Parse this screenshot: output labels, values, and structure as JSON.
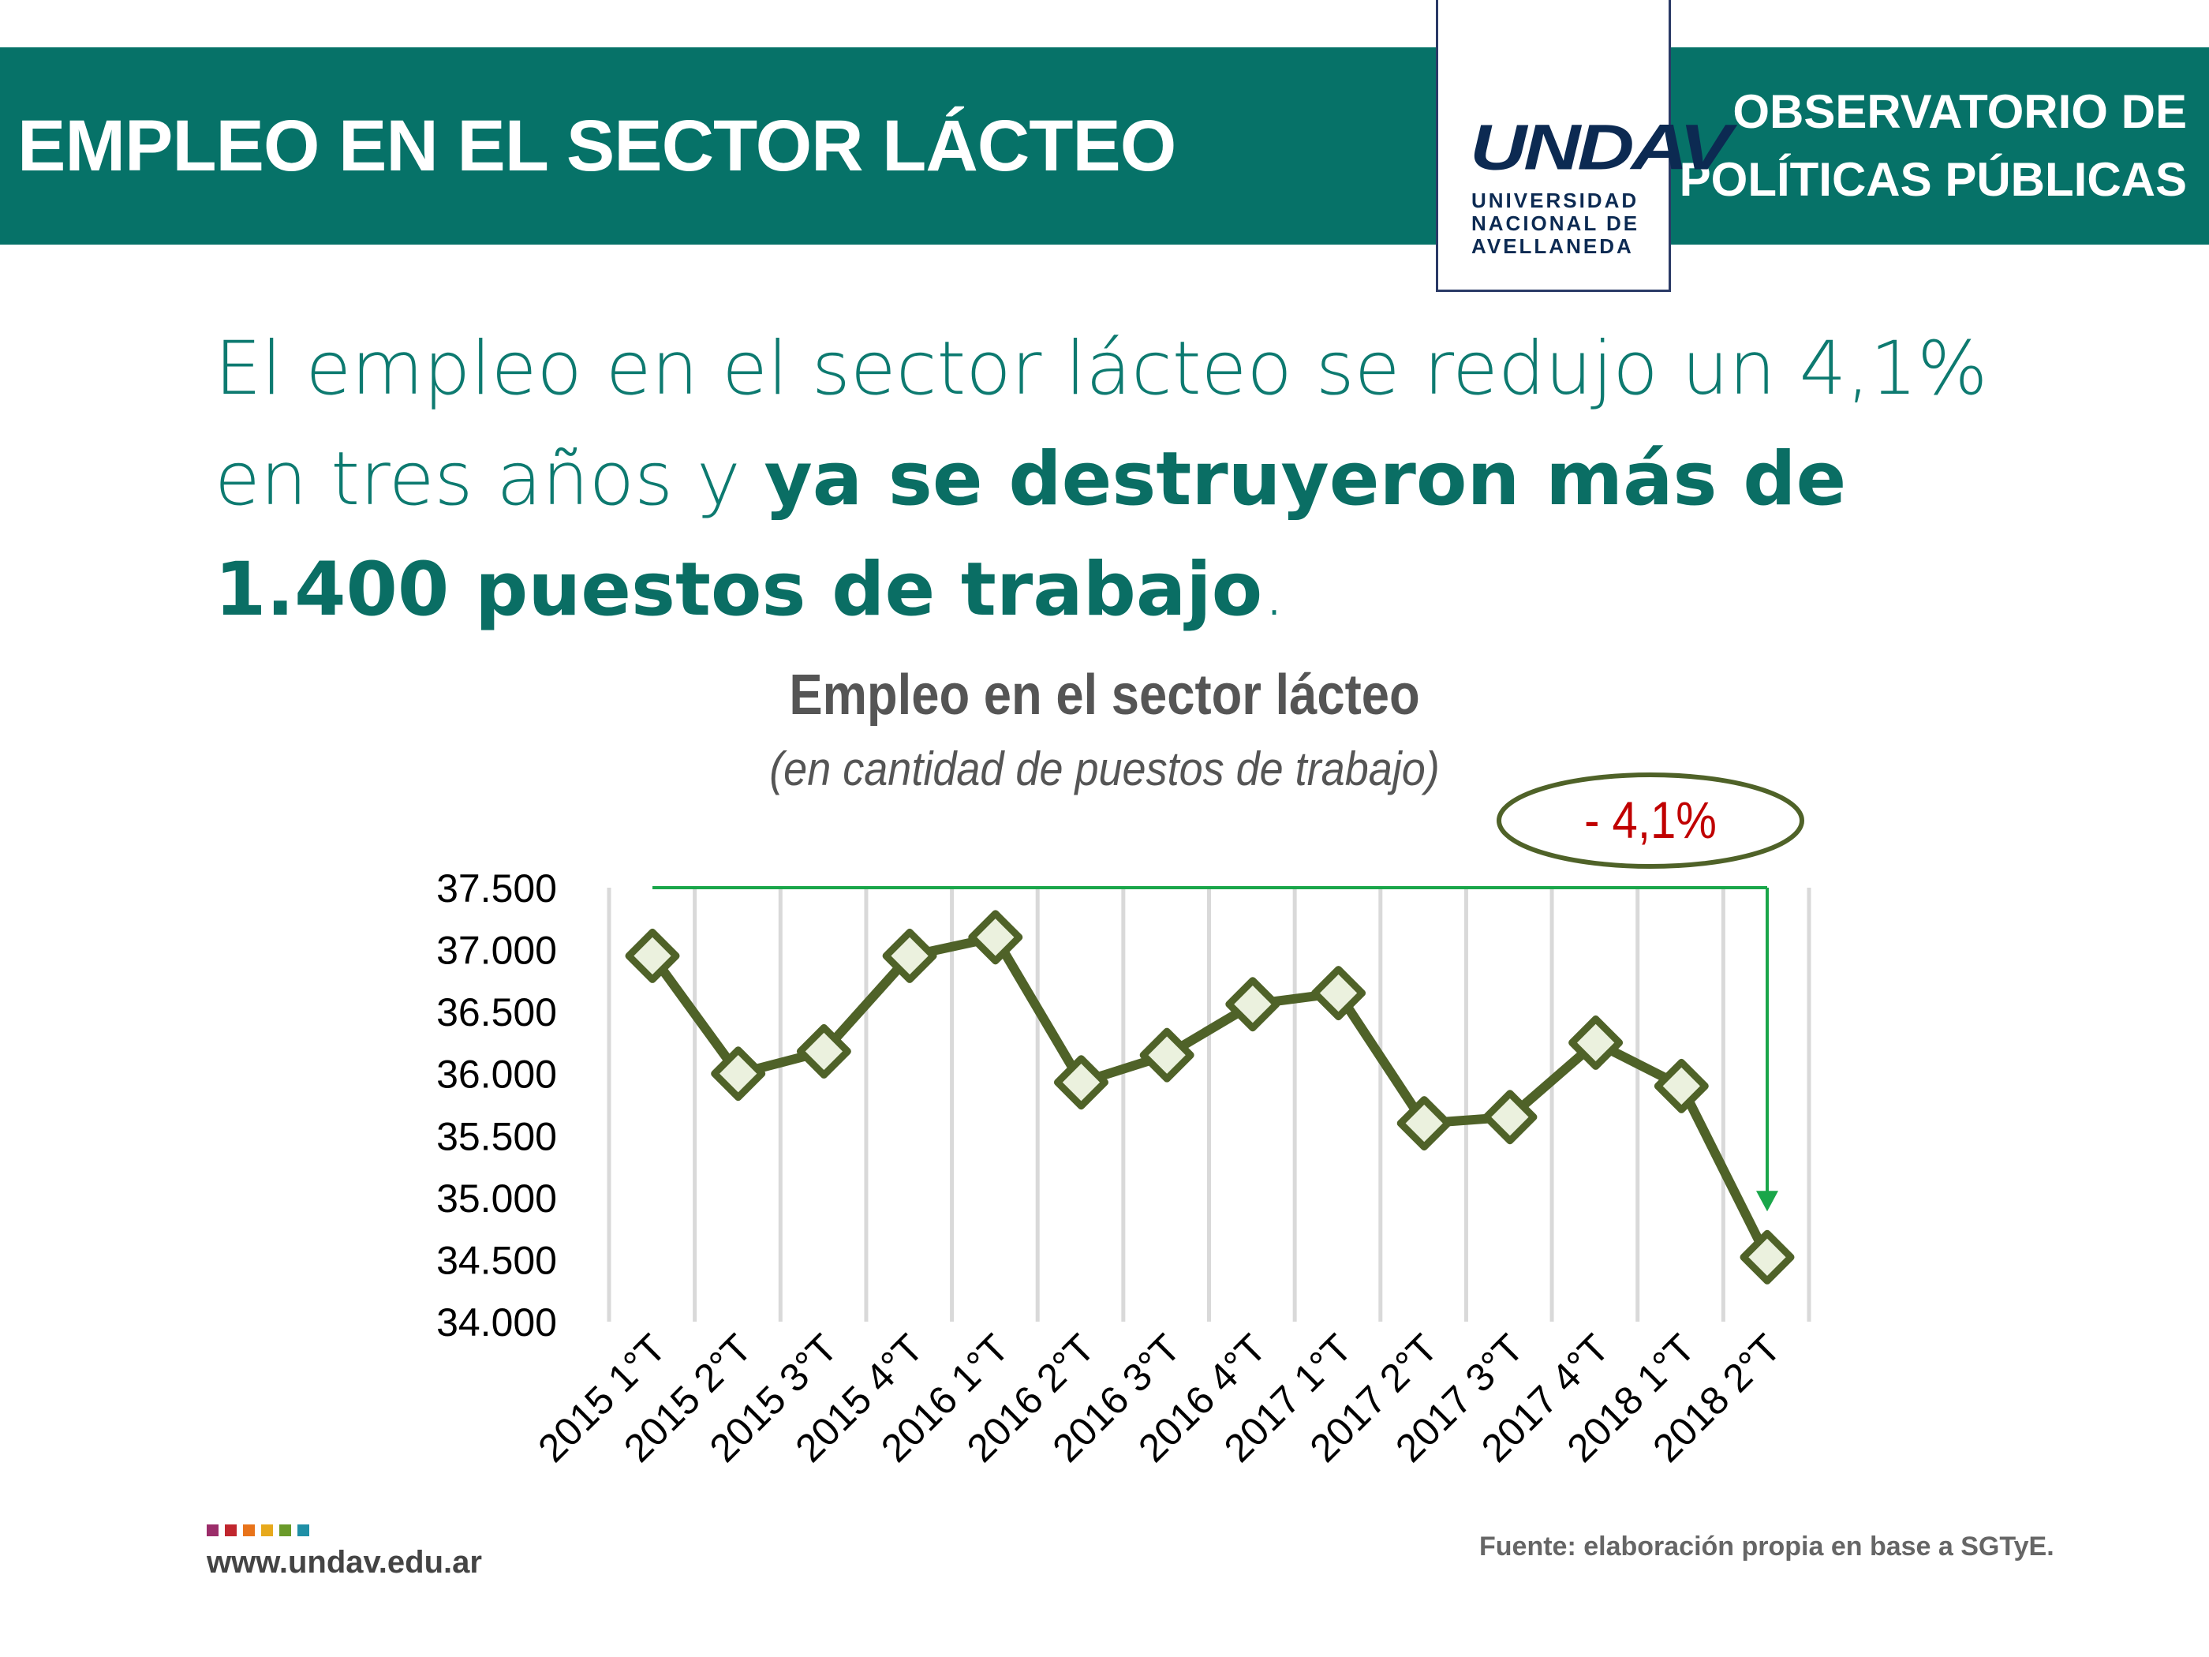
{
  "header": {
    "title": "EMPLEO EN EL SECTOR LÁCTEO",
    "org_line1": "OBSERVATORIO DE",
    "org_line2": "POLÍTICAS PÚBLICAS"
  },
  "logo": {
    "mark": "UNDAV",
    "line1": "UNIVERSIDAD",
    "line2": "NACIONAL DE",
    "line3": "AVELLANEDA"
  },
  "headline": {
    "part1": "El empleo en el sector lácteo se redujo un 4,1% en tres años y ",
    "bold": "ya se destruyeron más de 1.400 puestos de trabajo",
    "part2": "."
  },
  "chart_data": {
    "type": "line",
    "title": "Empleo en el sector lácteo",
    "subtitle": "(en cantidad de puestos de trabajo)",
    "categories": [
      "2015 1°T",
      "2015 2°T",
      "2015 3°T",
      "2015 4°T",
      "2016 1°T",
      "2016 2°T",
      "2016 3°T",
      "2016 4°T",
      "2017 1°T",
      "2017 2°T",
      "2017 3°T",
      "2017 4°T",
      "2018 1°T",
      "2018 2°T"
    ],
    "series": [
      {
        "values": [
          36950,
          36000,
          36180,
          36950,
          37100,
          35930,
          36150,
          36560,
          36650,
          35600,
          35650,
          36250,
          35900,
          34520
        ]
      }
    ],
    "ylim": [
      34000,
      37500
    ],
    "yticks": [
      "34.000",
      "34.500",
      "35.000",
      "35.500",
      "36.000",
      "36.500",
      "37.000",
      "37.500"
    ],
    "grid": "vertical",
    "annotation": "- 4,1%",
    "colors": {
      "line": "#4f6228",
      "marker_fill": "#ebf1de",
      "arrow": "#1aa64a",
      "annotation_text": "#c00000",
      "ellipse": "#4f6228"
    }
  },
  "footer": {
    "url": "www.undav.edu.ar",
    "source": "Fuente: elaboración propia en base a SGTyE.",
    "dot_colors": [
      "#9b2d6a",
      "#c0262e",
      "#e8731a",
      "#e7a91c",
      "#6a9a2a",
      "#1f8fa6"
    ]
  },
  "colors": {
    "brand": "#067268",
    "headline": "#0d7a70"
  }
}
